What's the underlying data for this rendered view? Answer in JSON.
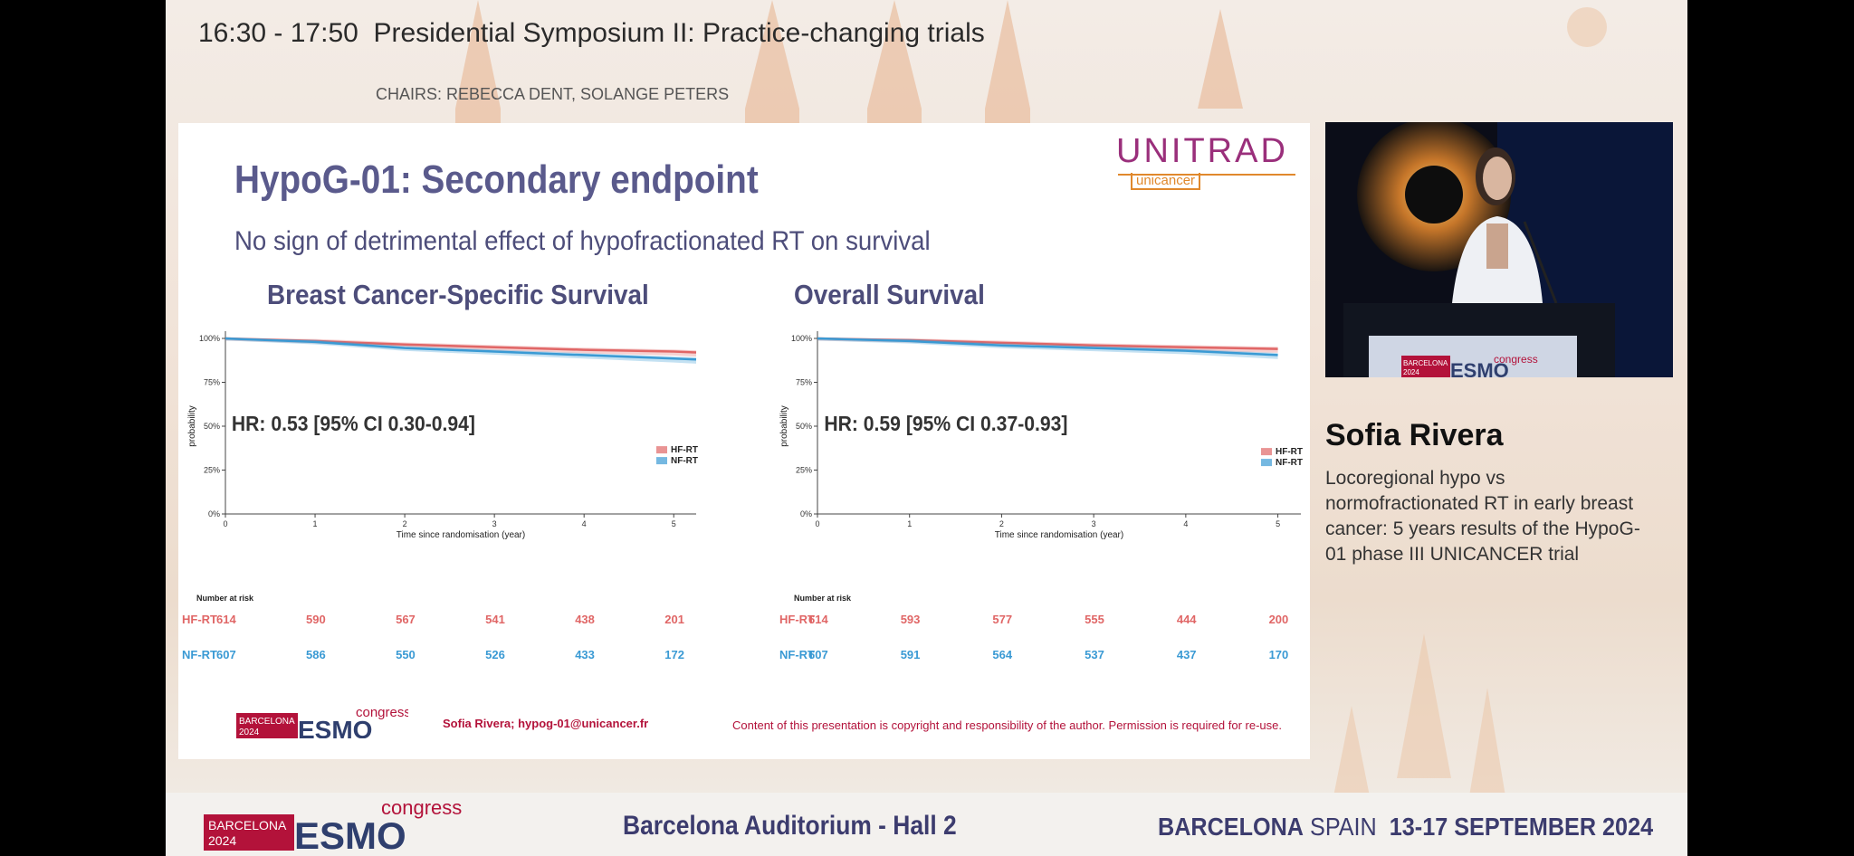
{
  "header": {
    "time": "16:30 - 17:50",
    "session": "Presidential Symposium II: Practice-changing trials",
    "chairs": "CHAIRS: REBECCA DENT, SOLANGE PETERS"
  },
  "slide": {
    "title": "HypoG-01: Secondary endpoint",
    "subtitle": "No sign of detrimental effect of hypofractionated RT on survival",
    "logo_main": "UNITRAD",
    "logo_sub": "unicancer",
    "author": "Sofia Rivera;  hypog-01@unicancer.fr",
    "copyright": "Content of this presentation is copyright and responsibility of the author. Permission is required for re-use.",
    "esmo_city": "BARCELONA",
    "esmo_year": "2024",
    "esmo_name": "ESMO",
    "esmo_congress": "congress"
  },
  "chart_data": [
    {
      "type": "line",
      "title": "Breast Cancer-Specific Survival",
      "xlabel": "Time since randomisation (year)",
      "ylabel": "probability",
      "x_ticks": [
        "0",
        "1",
        "2",
        "3",
        "4",
        "5"
      ],
      "y_ticks": [
        "0%",
        "25%",
        "50%",
        "75%",
        "100%"
      ],
      "xlim": [
        0,
        5.25
      ],
      "ylim": [
        0,
        1
      ],
      "annotation": "HR: 0.53 [95% CI 0.30-0.94]",
      "legend_position": "right",
      "series": [
        {
          "name": "HF-RT",
          "color": "#e06666",
          "x": [
            0,
            1,
            2,
            3,
            4,
            5,
            5.25
          ],
          "y": [
            1.0,
            0.985,
            0.965,
            0.95,
            0.935,
            0.925,
            0.92
          ]
        },
        {
          "name": "NF-RT",
          "color": "#3a9ad4",
          "x": [
            0,
            1,
            2,
            3,
            4,
            5,
            5.25
          ],
          "y": [
            1.0,
            0.98,
            0.945,
            0.925,
            0.905,
            0.885,
            0.88
          ]
        }
      ],
      "risk_table": {
        "heading": "Number at risk",
        "rows": [
          {
            "name": "HF-RT",
            "values": [
              "614",
              "590",
              "567",
              "541",
              "438",
              "201"
            ]
          },
          {
            "name": "NF-RT",
            "values": [
              "607",
              "586",
              "550",
              "526",
              "433",
              "172"
            ]
          }
        ]
      }
    },
    {
      "type": "line",
      "title": "Overall Survival",
      "xlabel": "Time since randomisation (year)",
      "ylabel": "probability",
      "x_ticks": [
        "0",
        "1",
        "2",
        "3",
        "4",
        "5"
      ],
      "y_ticks": [
        "0%",
        "25%",
        "50%",
        "75%",
        "100%"
      ],
      "xlim": [
        0,
        5.25
      ],
      "ylim": [
        0,
        1
      ],
      "annotation": "HR: 0.59 [95% CI 0.37-0.93]",
      "legend_position": "right",
      "series": [
        {
          "name": "HF-RT",
          "color": "#e06666",
          "x": [
            0,
            1,
            2,
            3,
            4,
            5
          ],
          "y": [
            1.0,
            0.99,
            0.975,
            0.96,
            0.95,
            0.94
          ]
        },
        {
          "name": "NF-RT",
          "color": "#3a9ad4",
          "x": [
            0,
            1,
            2,
            3,
            4,
            5
          ],
          "y": [
            1.0,
            0.985,
            0.96,
            0.945,
            0.93,
            0.905
          ]
        }
      ],
      "risk_table": {
        "heading": "Number at risk",
        "rows": [
          {
            "name": "HF-RT",
            "values": [
              "614",
              "593",
              "577",
              "555",
              "444",
              "200"
            ]
          },
          {
            "name": "NF-RT",
            "values": [
              "607",
              "591",
              "564",
              "537",
              "437",
              "170"
            ]
          }
        ]
      }
    }
  ],
  "speaker": {
    "name": "Sofia Rivera",
    "talk_title": "Locoregional hypo vs normofractionated RT in early breast cancer: 5 years results of the HypoG-01 phase III UNICANCER trial",
    "podium_esmo_city": "BARCELONA",
    "podium_esmo_year": "2024",
    "podium_esmo_name": "ESMO",
    "podium_esmo_congress": "congress"
  },
  "footer": {
    "esmo_city": "BARCELONA",
    "esmo_year": "2024",
    "esmo_name": "ESMO",
    "esmo_congress": "congress",
    "venue": "Barcelona Auditorium - Hall 2",
    "location_city": "BARCELONA",
    "location_country": "SPAIN",
    "dates": "13-17 SEPTEMBER 2024"
  },
  "colors": {
    "hf_rt": "#e06666",
    "nf_rt": "#3a9ad4",
    "slide_title": "#5a5a8c",
    "accent": "#b3123a"
  }
}
